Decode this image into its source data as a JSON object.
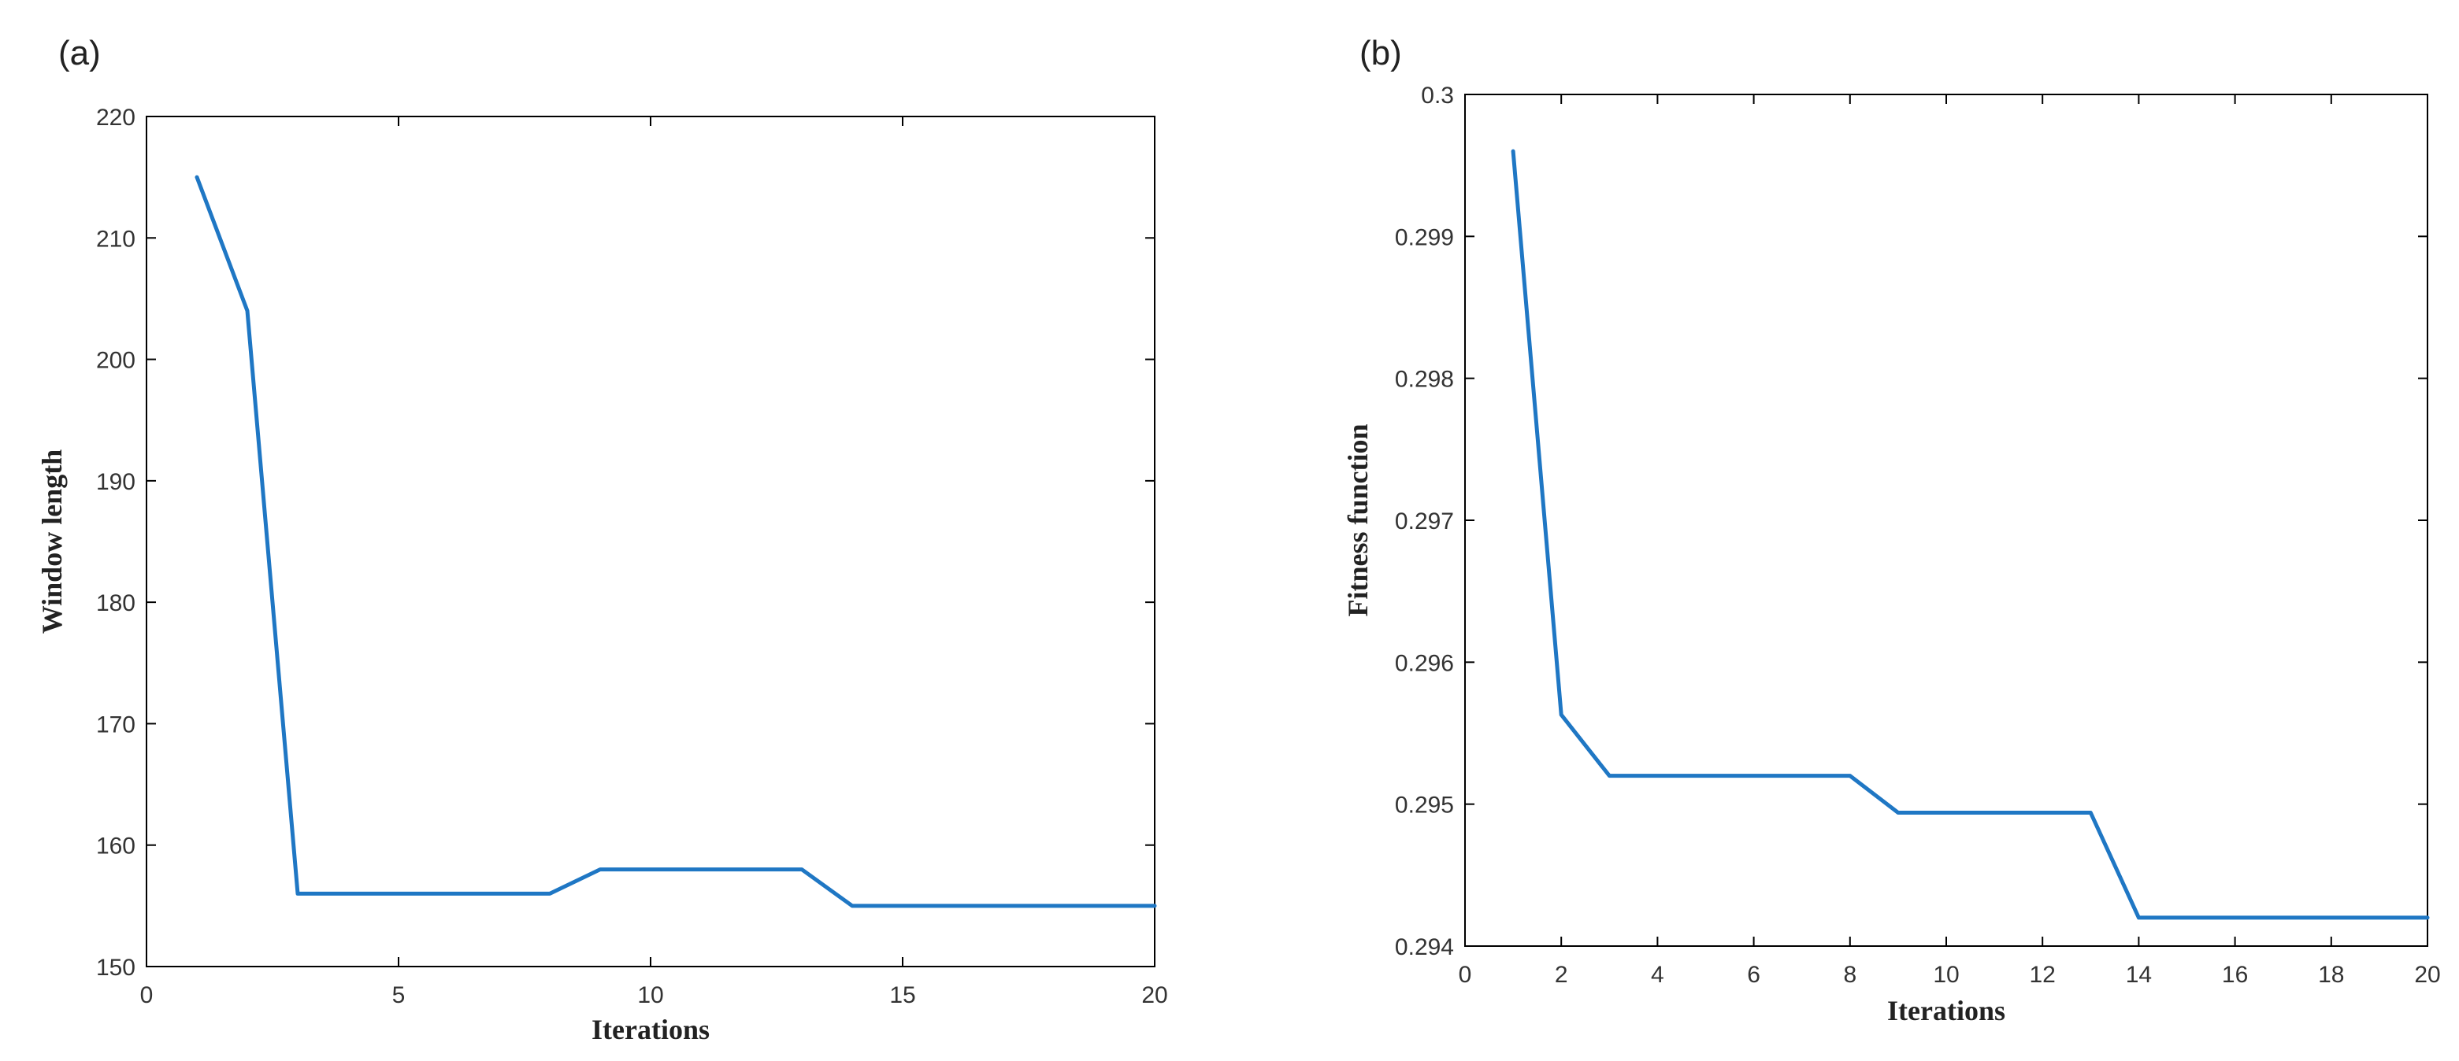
{
  "chart_data": [
    {
      "panel_label": "(a)",
      "type": "line",
      "title": "",
      "xlabel": "Iterations",
      "ylabel": "Window length",
      "xlim": [
        0,
        20
      ],
      "ylim": [
        150,
        220
      ],
      "xticks": [
        0,
        5,
        10,
        15,
        20
      ],
      "xtick_labels": [
        "0",
        "5",
        "10",
        "15",
        "20"
      ],
      "yticks": [
        150,
        160,
        170,
        180,
        190,
        200,
        210,
        220
      ],
      "ytick_labels": [
        "150",
        "160",
        "170",
        "180",
        "190",
        "200",
        "210",
        "220"
      ],
      "grid": false,
      "color": "#1f77c4",
      "series": [
        {
          "x": [
            1,
            2,
            3,
            4,
            5,
            6,
            7,
            8,
            9,
            10,
            11,
            12,
            13,
            14,
            15,
            16,
            17,
            18,
            19,
            20
          ],
          "y": [
            215,
            204,
            156,
            156,
            156,
            156,
            156,
            156,
            158,
            158,
            158,
            158,
            158,
            155,
            155,
            155,
            155,
            155,
            155,
            155
          ]
        }
      ]
    },
    {
      "panel_label": "(b)",
      "type": "line",
      "title": "",
      "xlabel": "Iterations",
      "ylabel": "Fitness function",
      "xlim": [
        0,
        20
      ],
      "ylim": [
        0.294,
        0.3
      ],
      "xticks": [
        0,
        2,
        4,
        6,
        8,
        10,
        12,
        14,
        16,
        18,
        20
      ],
      "xtick_labels": [
        "0",
        "2",
        "4",
        "6",
        "8",
        "10",
        "12",
        "14",
        "16",
        "18",
        "20"
      ],
      "yticks": [
        0.294,
        0.295,
        0.296,
        0.297,
        0.298,
        0.299,
        0.3
      ],
      "ytick_labels": [
        "0.294",
        "0.295",
        "0.296",
        "0.297",
        "0.298",
        "0.299",
        "0.3"
      ],
      "grid": false,
      "color": "#1f77c4",
      "series": [
        {
          "x": [
            1,
            2,
            3,
            4,
            5,
            6,
            7,
            8,
            9,
            10,
            11,
            12,
            13,
            14,
            15,
            16,
            17,
            18,
            19,
            20
          ],
          "y": [
            0.2996,
            0.29563,
            0.2952,
            0.2952,
            0.2952,
            0.2952,
            0.2952,
            0.2952,
            0.29494,
            0.29494,
            0.29494,
            0.29494,
            0.29494,
            0.2942,
            0.2942,
            0.2942,
            0.2942,
            0.2942,
            0.2942,
            0.2942
          ]
        }
      ]
    }
  ]
}
